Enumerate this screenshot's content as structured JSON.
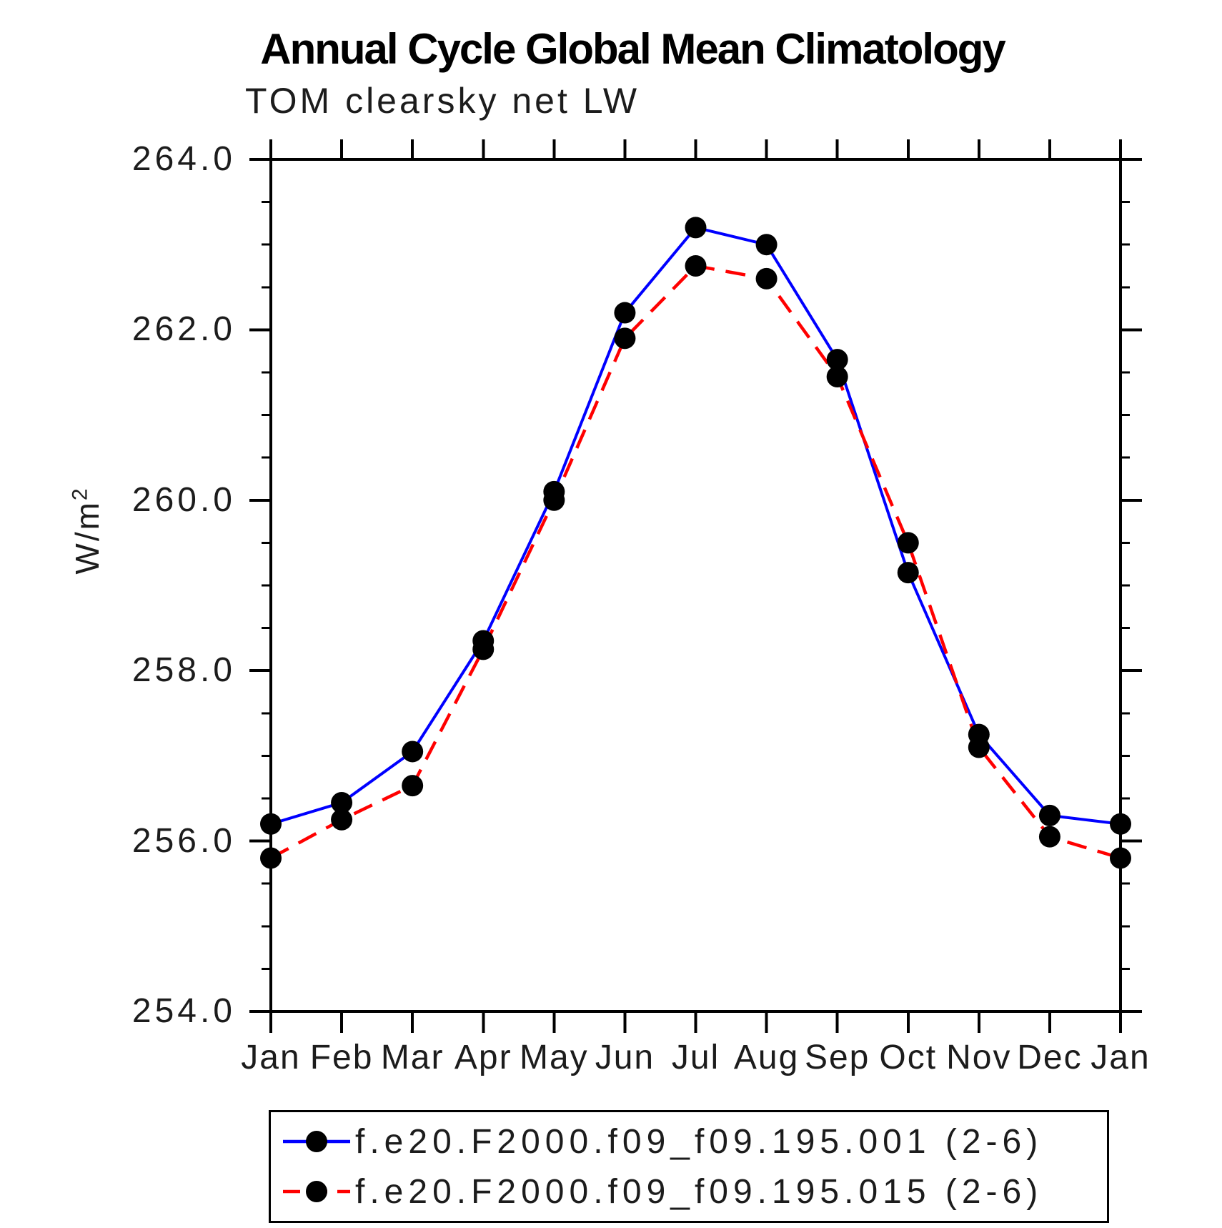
{
  "page": {
    "background": "#ffffff"
  },
  "chart_data": {
    "type": "line",
    "title": "Annual Cycle Global Mean Climatology",
    "subtitle": "TOM clearsky net LW",
    "ylabel": "W/m²",
    "xlabel": "",
    "categories": [
      "Jan",
      "Feb",
      "Mar",
      "Apr",
      "May",
      "Jun",
      "Jul",
      "Aug",
      "Sep",
      "Oct",
      "Nov",
      "Dec",
      "Jan"
    ],
    "ylim": [
      254.0,
      264.0
    ],
    "ytick_labels": [
      "264.0",
      "262.0",
      "260.0",
      "258.0",
      "256.0",
      "254.0"
    ],
    "ytick_major_step": 2.0,
    "ytick_minor_step": 0.5,
    "grid": false,
    "legend_position": "bottom",
    "axis_color": "#000000",
    "marker_shape": "filled-circle",
    "marker_color": "#000000",
    "series": [
      {
        "name": "f.e20.F2000.f09_f09.195.001 (2-6)",
        "color": "#0000ff",
        "line_style": "solid",
        "values": [
          256.2,
          256.45,
          257.05,
          258.35,
          260.1,
          262.2,
          263.2,
          263.0,
          261.65,
          259.15,
          257.25,
          256.3,
          256.2
        ]
      },
      {
        "name": "f.e20.F2000.f09_f09.195.015 (2-6)",
        "color": "#ff0000",
        "line_style": "dashed",
        "values": [
          255.8,
          256.25,
          256.65,
          258.25,
          260.0,
          261.9,
          262.75,
          262.6,
          261.45,
          259.5,
          257.1,
          256.05,
          255.8
        ]
      }
    ]
  }
}
